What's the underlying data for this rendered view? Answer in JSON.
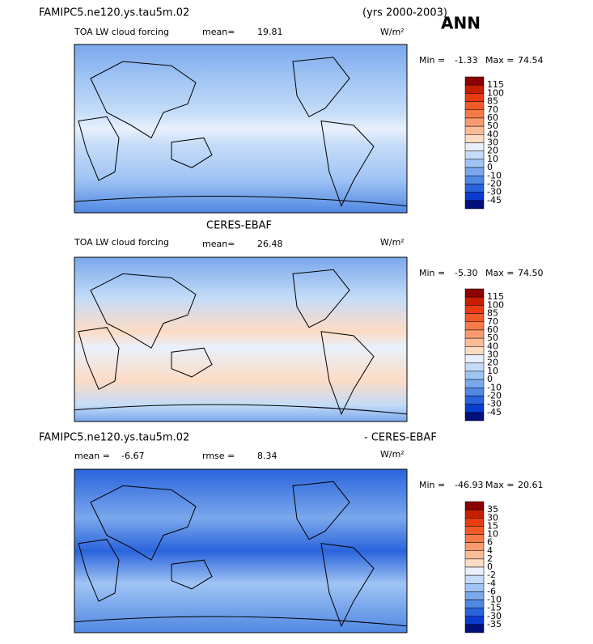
{
  "header": {
    "case": "FAMIPC5.ne120.ys.tau5m.02",
    "years": "(yrs 2000-2003)",
    "season": "ANN"
  },
  "panels": [
    {
      "variable": "TOA LW cloud forcing",
      "mean_label": "mean=",
      "mean": 19.81,
      "units": "W/m²",
      "min_label": "Min =",
      "min": -1.33,
      "max_label": "Max =",
      "max": 74.54,
      "levels": [
        115,
        100,
        85,
        70,
        60,
        50,
        40,
        30,
        20,
        10,
        0,
        -10,
        -20,
        -30,
        -45
      ],
      "colors": [
        "#8b0000",
        "#c81e00",
        "#e83c10",
        "#f05a28",
        "#f47a48",
        "#f89a70",
        "#fbbc98",
        "#fddcc4",
        "#e8f0fc",
        "#c4dcf8",
        "#a0c4f4",
        "#7aa8ec",
        "#5088e4",
        "#2a64dc",
        "#0a3cd0",
        "#00107a"
      ]
    },
    {
      "title": "CERES-EBAF",
      "variable": "TOA LW cloud forcing",
      "mean_label": "mean=",
      "mean": 26.48,
      "units": "W/m²",
      "min_label": "Min =",
      "min": -5.3,
      "min_text": "-5.30",
      "max_label": "Max =",
      "max": 74.5,
      "max_text": "74.50",
      "levels": [
        115,
        100,
        85,
        70,
        60,
        50,
        40,
        30,
        20,
        10,
        0,
        -10,
        -20,
        -30,
        -45
      ],
      "colors": [
        "#8b0000",
        "#c81e00",
        "#e83c10",
        "#f05a28",
        "#f47a48",
        "#f89a70",
        "#fbbc98",
        "#fddcc4",
        "#e8f0fc",
        "#c4dcf8",
        "#a0c4f4",
        "#7aa8ec",
        "#5088e4",
        "#2a64dc",
        "#0a3cd0",
        "#00107a"
      ]
    },
    {
      "title_left": "FAMIPC5.ne120.ys.tau5m.02",
      "title_right": "- CERES-EBAF",
      "mean_label": "mean =",
      "mean": -6.67,
      "rmse_label": "rmse =",
      "rmse": 8.34,
      "units": "W/m²",
      "min_label": "Min =",
      "min": -46.93,
      "max_label": "Max =",
      "max": 20.61,
      "levels": [
        35,
        30,
        15,
        10,
        6,
        4,
        2,
        0,
        -2,
        -4,
        -6,
        -10,
        -15,
        -30,
        -35
      ],
      "colors": [
        "#8b0000",
        "#c81e00",
        "#e83c10",
        "#f05a28",
        "#f47a48",
        "#f89a70",
        "#fbbc98",
        "#fddcc4",
        "#e8f0fc",
        "#c4dcf8",
        "#a0c4f4",
        "#7aa8ec",
        "#5088e4",
        "#2a64dc",
        "#0a3cd0",
        "#00107a"
      ]
    }
  ]
}
